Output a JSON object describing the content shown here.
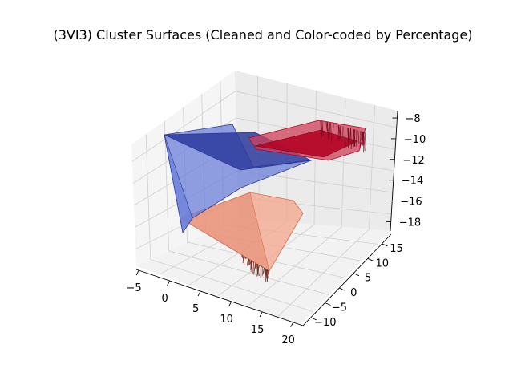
{
  "chart_data": {
    "type": "surface-3d",
    "title": "(3VI3) Cluster Surfaces (Cleaned and Color-coded by Percentage)",
    "x_ticks": [
      "−5",
      "0",
      "5",
      "10",
      "15",
      "20"
    ],
    "y_ticks": [
      "−10",
      "−5",
      "0",
      "5",
      "10",
      "15"
    ],
    "z_ticks": [
      "−8",
      "−10",
      "−12",
      "−14",
      "−16",
      "−18"
    ],
    "xlim": [
      -6,
      21
    ],
    "ylim": [
      -13,
      17
    ],
    "zlim": [
      -18.5,
      -7.8
    ],
    "series": [
      {
        "color": "#2b3a9c",
        "light": "#6b7fd8",
        "extent": {
          "x": [
            -4,
            12
          ],
          "y": [
            0,
            16
          ],
          "z": [
            -17.5,
            -9.5
          ]
        }
      },
      {
        "color": "#b40426",
        "light": "#d0405a",
        "extent": {
          "x": [
            8,
            20
          ],
          "y": [
            2,
            16
          ],
          "z": [
            -10.5,
            -9
          ]
        }
      },
      {
        "color": "#d96e53",
        "light": "#f4a58a",
        "extent": {
          "x": [
            4,
            16
          ],
          "y": [
            -10,
            4
          ],
          "z": [
            -17,
            -15
          ]
        }
      }
    ]
  }
}
